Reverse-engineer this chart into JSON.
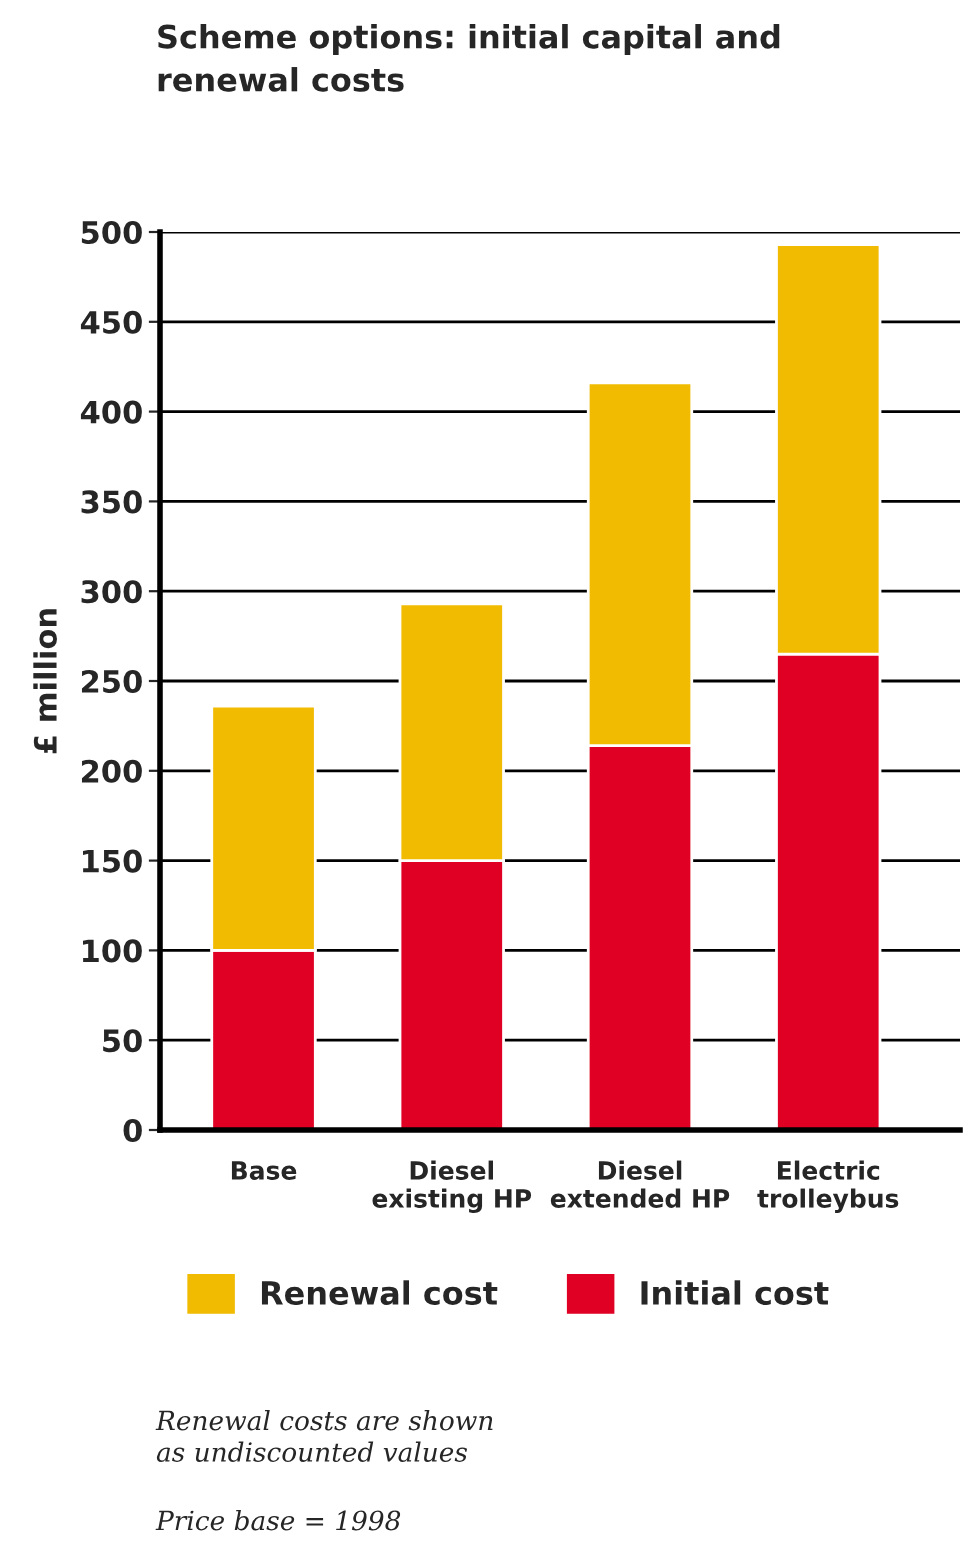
{
  "chart_data": {
    "type": "bar",
    "title": "Scheme options: initial capital and\nrenewal costs",
    "ylabel": "£ million",
    "categories": [
      "Base",
      "Diesel\nexisting HP",
      "Diesel\nextended HP",
      "Electric\ntrolleybus"
    ],
    "series": [
      {
        "name": "Initial cost",
        "color": "#e00024",
        "values": [
          100,
          150,
          214,
          265
        ]
      },
      {
        "name": "Renewal cost",
        "color": "#f0bb00",
        "values": [
          136,
          143,
          202,
          228
        ]
      }
    ],
    "stacked": true,
    "ylim": [
      0,
      500
    ],
    "yticks": [
      0,
      50,
      100,
      150,
      200,
      250,
      300,
      350,
      400,
      450,
      500
    ],
    "grid": "y",
    "legend": "bottom",
    "annotations": [
      "Renewal costs are shown\nas undiscounted values",
      "Price base = 1998"
    ]
  }
}
